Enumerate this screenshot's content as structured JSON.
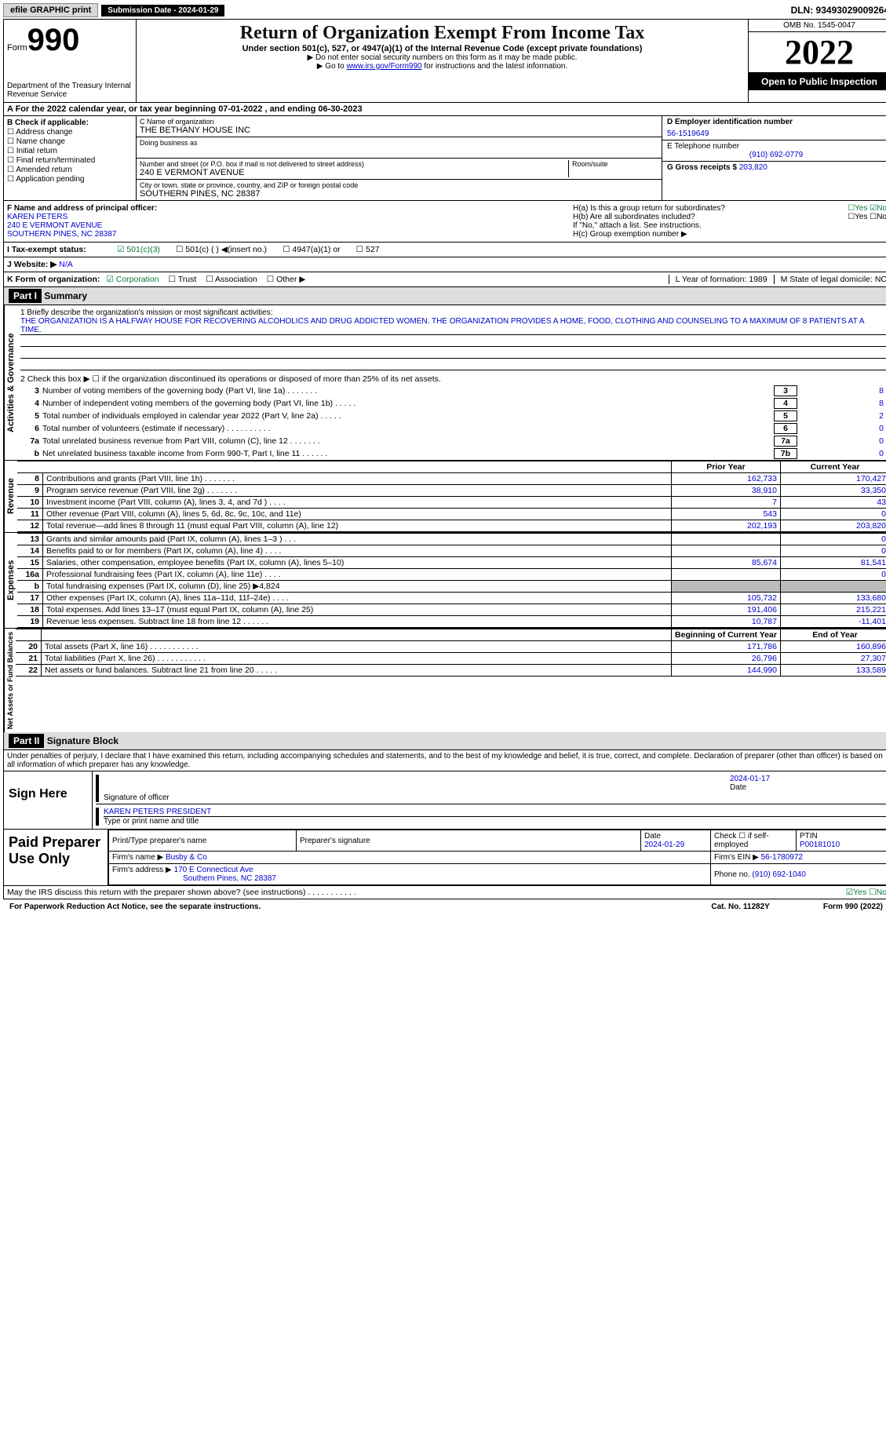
{
  "topbar": {
    "efile": "efile GRAPHIC print",
    "submission": "Submission Date - 2024-01-29",
    "dln": "DLN: 93493029009264"
  },
  "header": {
    "form_label": "Form",
    "form_num": "990",
    "dept": "Department of the Treasury Internal Revenue Service",
    "title": "Return of Organization Exempt From Income Tax",
    "sub": "Under section 501(c), 527, or 4947(a)(1) of the Internal Revenue Code (except private foundations)",
    "note1": "▶ Do not enter social security numbers on this form as it may be made public.",
    "note2_pre": "▶ Go to ",
    "note2_link": "www.irs.gov/Form990",
    "note2_post": " for instructions and the latest information.",
    "omb": "OMB No. 1545-0047",
    "year": "2022",
    "open": "Open to Public Inspection"
  },
  "row_a": "A For the 2022 calendar year, or tax year beginning 07-01-2022    , and ending 06-30-2023",
  "col_b": {
    "title": "B Check if applicable:",
    "items": [
      "☐ Address change",
      "☐ Name change",
      "☐ Initial return",
      "☐ Final return/terminated",
      "☐ Amended return",
      "☐ Application pending"
    ]
  },
  "col_c": {
    "name_label": "C Name of organization",
    "name_val": "THE BETHANY HOUSE INC",
    "dba_label": "Doing business as",
    "addr_label": "Number and street (or P.O. box if mail is not delivered to street address)",
    "room_label": "Room/suite",
    "addr_val": "240 E VERMONT AVENUE",
    "city_label": "City or town, state or province, country, and ZIP or foreign postal code",
    "city_val": "SOUTHERN PINES, NC  28387"
  },
  "col_d": {
    "ein_label": "D Employer identification number",
    "ein_val": "56-1519649",
    "tel_label": "E Telephone number",
    "tel_val": "(910) 692-0779",
    "gross_label": "G Gross receipts $",
    "gross_val": "203,820"
  },
  "row_f": {
    "label": "F Name and address of principal officer:",
    "name": "KAREN PETERS",
    "addr1": "240 E VERMONT AVENUE",
    "addr2": "SOUTHERN PINES, NC  28387"
  },
  "row_h": {
    "ha": "H(a)  Is this a group return for subordinates?",
    "ha_ans": "☐Yes ☑No",
    "hb": "H(b)  Are all subordinates included?",
    "hb_ans": "☐Yes ☐No",
    "hb_note": "If \"No,\" attach a list. See instructions.",
    "hc": "H(c)  Group exemption number ▶"
  },
  "row_i": {
    "label": "I   Tax-exempt status:",
    "c3": "☑ 501(c)(3)",
    "c": "☐ 501(c) (  ) ◀(insert no.)",
    "a1": "☐ 4947(a)(1) or",
    "s527": "☐ 527"
  },
  "row_j": {
    "label": "J   Website: ▶",
    "val": "N/A"
  },
  "row_k": {
    "label": "K Form of organization:",
    "corp": "☑ Corporation",
    "trust": "☐ Trust",
    "assoc": "☐ Association",
    "other": "☐ Other ▶",
    "l": "L Year of formation: 1989",
    "m": "M State of legal domicile: NC"
  },
  "part1": {
    "hdr": "Part I",
    "title": "Summary",
    "tab_ag": "Activities & Governance",
    "tab_rev": "Revenue",
    "tab_exp": "Expenses",
    "tab_net": "Net Assets or Fund Balances",
    "l1_label": "1   Briefly describe the organization's mission or most significant activities:",
    "l1_text": "THE ORGANIZATION IS A HALFWAY HOUSE FOR RECOVERING ALCOHOLICS AND DRUG ADDICTED WOMEN. THE ORGANIZATION PROVIDES A HOME, FOOD, CLOTHING AND COUNSELING TO A MAXIMUM OF 8 PATIENTS AT A TIME.",
    "l2": "2   Check this box ▶ ☐ if the organization discontinued its operations or disposed of more than 25% of its net assets.",
    "lines": [
      {
        "n": "3",
        "d": "Number of voting members of the governing body (Part VI, line 1a)   .    .    .    .    .    .    .",
        "b": "3",
        "v": "8"
      },
      {
        "n": "4",
        "d": "Number of independent voting members of the governing body (Part VI, line 1b)   .    .    .    .    .",
        "b": "4",
        "v": "8"
      },
      {
        "n": "5",
        "d": "Total number of individuals employed in calendar year 2022 (Part V, line 2a)   .    .    .    .    .",
        "b": "5",
        "v": "2"
      },
      {
        "n": "6",
        "d": "Total number of volunteers (estimate if necessary)   .    .    .    .    .    .    .    .    .    .",
        "b": "6",
        "v": "0"
      },
      {
        "n": "7a",
        "d": "Total unrelated business revenue from Part VIII, column (C), line 12   .    .    .    .    .    .    .",
        "b": "7a",
        "v": "0"
      },
      {
        "n": "b",
        "d": "Net unrelated business taxable income from Form 990-T, Part I, line 11   .    .    .    .    .    .",
        "b": "7b",
        "v": "0"
      }
    ],
    "prior_hdr": "Prior Year",
    "curr_hdr": "Current Year",
    "rev": [
      {
        "n": "8",
        "d": "Contributions and grants (Part VIII, line 1h)   .    .    .    .    .    .    .",
        "p": "162,733",
        "c": "170,427"
      },
      {
        "n": "9",
        "d": "Program service revenue (Part VIII, line 2g)   .    .    .    .    .    .    .",
        "p": "38,910",
        "c": "33,350"
      },
      {
        "n": "10",
        "d": "Investment income (Part VIII, column (A), lines 3, 4, and 7d )   .    .    .    .",
        "p": "7",
        "c": "43"
      },
      {
        "n": "11",
        "d": "Other revenue (Part VIII, column (A), lines 5, 6d, 8c, 9c, 10c, and 11e)",
        "p": "543",
        "c": "0"
      },
      {
        "n": "12",
        "d": "Total revenue—add lines 8 through 11 (must equal Part VIII, column (A), line 12)",
        "p": "202,193",
        "c": "203,820"
      }
    ],
    "exp": [
      {
        "n": "13",
        "d": "Grants and similar amounts paid (Part IX, column (A), lines 1–3 )   .    .    .",
        "p": "",
        "c": "0"
      },
      {
        "n": "14",
        "d": "Benefits paid to or for members (Part IX, column (A), line 4)   .    .    .    .",
        "p": "",
        "c": "0"
      },
      {
        "n": "15",
        "d": "Salaries, other compensation, employee benefits (Part IX, column (A), lines 5–10)",
        "p": "85,674",
        "c": "81,541"
      },
      {
        "n": "16a",
        "d": "Professional fundraising fees (Part IX, column (A), line 11e)   .    .    .    .",
        "p": "",
        "c": "0"
      },
      {
        "n": "b",
        "d": "Total fundraising expenses (Part IX, column (D), line 25) ▶4,824",
        "p": "gray",
        "c": "gray"
      },
      {
        "n": "17",
        "d": "Other expenses (Part IX, column (A), lines 11a–11d, 11f–24e)   .    .    .    .",
        "p": "105,732",
        "c": "133,680"
      },
      {
        "n": "18",
        "d": "Total expenses. Add lines 13–17 (must equal Part IX, column (A), line 25)",
        "p": "191,406",
        "c": "215,221"
      },
      {
        "n": "19",
        "d": "Revenue less expenses. Subtract line 18 from line 12   .    .    .    .    .    .",
        "p": "10,787",
        "c": "-11,401"
      }
    ],
    "net_hdr_p": "Beginning of Current Year",
    "net_hdr_c": "End of Year",
    "net": [
      {
        "n": "20",
        "d": "Total assets (Part X, line 16)   .    .    .    .    .    .    .    .    .    .    .",
        "p": "171,786",
        "c": "160,896"
      },
      {
        "n": "21",
        "d": "Total liabilities (Part X, line 26)   .    .    .    .    .    .    .    .    .    .    .",
        "p": "26,796",
        "c": "27,307"
      },
      {
        "n": "22",
        "d": "Net assets or fund balances. Subtract line 21 from line 20   .    .    .    .    .",
        "p": "144,990",
        "c": "133,589"
      }
    ]
  },
  "part2": {
    "hdr": "Part II",
    "title": "Signature Block",
    "decl": "Under penalties of perjury, I declare that I have examined this return, including accompanying schedules and statements, and to the best of my knowledge and belief, it is true, correct, and complete. Declaration of preparer (other than officer) is based on all information of which preparer has any knowledge.",
    "sign_here": "Sign Here",
    "sig_officer": "Signature of officer",
    "sig_date": "2024-01-17",
    "sig_date_label": "Date",
    "sig_name": "KAREN PETERS  PRESIDENT",
    "sig_name_label": "Type or print name and title",
    "paid": "Paid Preparer Use Only",
    "prep_name_label": "Print/Type preparer's name",
    "prep_sig_label": "Preparer's signature",
    "prep_date_label": "Date",
    "prep_date": "2024-01-29",
    "prep_check": "Check ☐ if self-employed",
    "ptin_label": "PTIN",
    "ptin": "P00181010",
    "firm_name_label": "Firm's name    ▶",
    "firm_name": "Busby & Co",
    "firm_ein_label": "Firm's EIN ▶",
    "firm_ein": "56-1780972",
    "firm_addr_label": "Firm's address ▶",
    "firm_addr1": "170 E Connecticut Ave",
    "firm_addr2": "Southern Pines, NC  28387",
    "firm_phone_label": "Phone no.",
    "firm_phone": "(910) 692-1040",
    "discuss": "May the IRS discuss this return with the preparer shown above? (see instructions)   .    .    .    .    .    .    .    .    .    .    .",
    "discuss_ans": "☑Yes ☐No"
  },
  "footer": {
    "left": "For Paperwork Reduction Act Notice, see the separate instructions.",
    "mid": "Cat. No. 11282Y",
    "right": "Form 990 (2022)"
  }
}
